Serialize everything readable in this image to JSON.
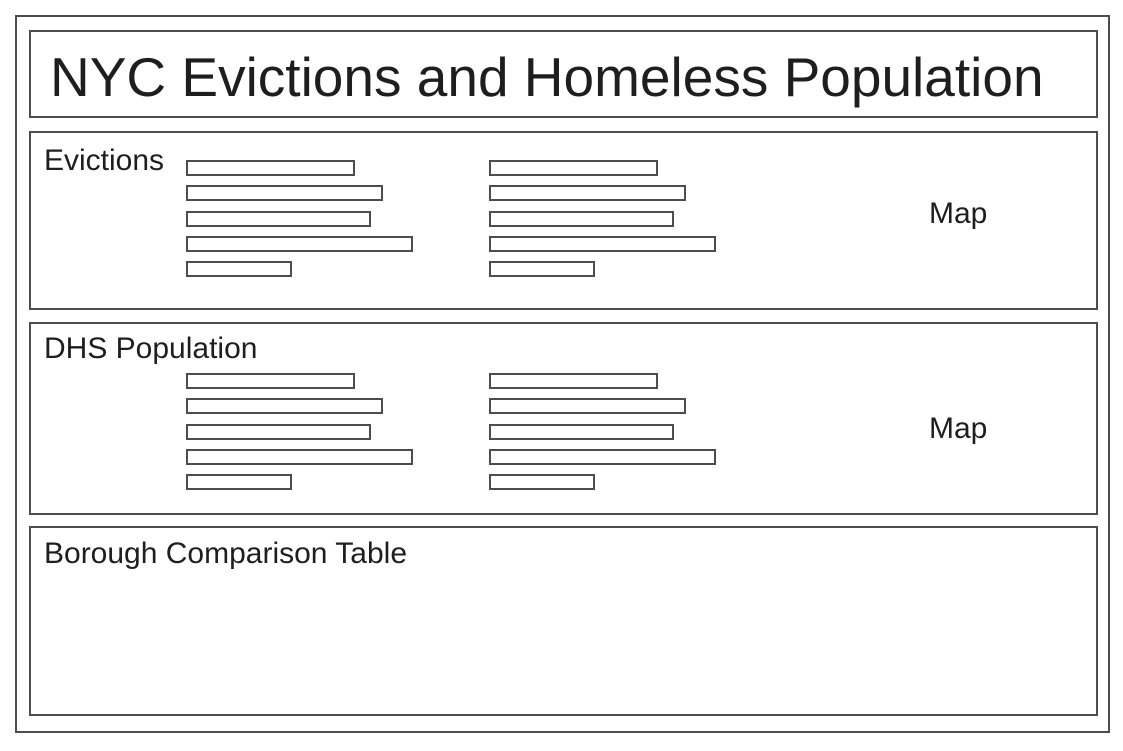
{
  "page": {
    "title": "NYC Evictions and Homeless Population"
  },
  "evictions_section": {
    "label": "Evictions",
    "map_label": "Map",
    "chart_left_bar_widths": [
      169,
      197,
      185,
      227,
      106
    ],
    "chart_right_bar_widths": [
      169,
      197,
      185,
      227,
      106
    ]
  },
  "dhs_section": {
    "label": "DHS Population",
    "map_label": "Map",
    "chart_left_bar_widths": [
      169,
      197,
      185,
      227,
      106
    ],
    "chart_right_bar_widths": [
      169,
      197,
      185,
      227,
      106
    ]
  },
  "table_section": {
    "label": "Borough Comparison Table"
  },
  "colors": {
    "border": "#4d4d4d",
    "text": "#1e1e1e"
  }
}
